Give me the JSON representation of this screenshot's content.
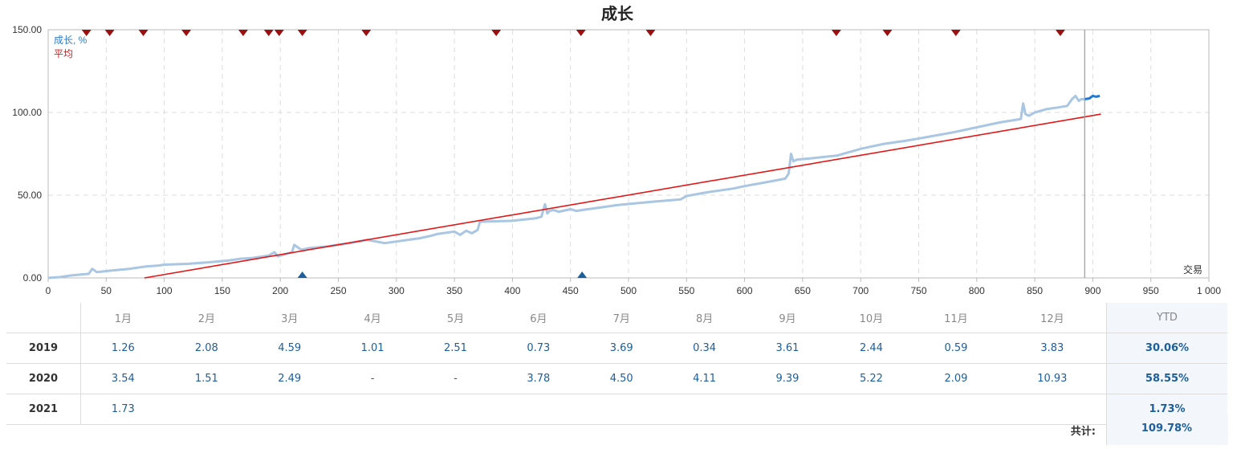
{
  "chart_data": {
    "type": "line",
    "title": "成长",
    "xlabel": "交易",
    "ylabel": "",
    "xlim": [
      0,
      1000
    ],
    "ylim": [
      0,
      150
    ],
    "grid": true,
    "legend_position": "top-left",
    "x_ticks": [
      "0",
      "50",
      "100",
      "150",
      "200",
      "250",
      "300",
      "350",
      "400",
      "450",
      "500",
      "550",
      "600",
      "650",
      "700",
      "750",
      "800",
      "850",
      "900",
      "950",
      "1 000"
    ],
    "y_ticks": [
      "0.00",
      "50.00",
      "100.00",
      "150.00"
    ],
    "colors": {
      "growth": "#a9c6e2",
      "growth_highlight": "#1f7ad6",
      "average": "#e01818",
      "marker_down": "#9b1010",
      "marker_up": "#1a5f9c",
      "cursor": "#999999"
    },
    "series": [
      {
        "name": "成长, %",
        "x": [
          0,
          10,
          20,
          35,
          38,
          42,
          55,
          70,
          80,
          85,
          95,
          100,
          120,
          140,
          155,
          165,
          175,
          190,
          195,
          198,
          205,
          210,
          212,
          218,
          225,
          240,
          260,
          275,
          290,
          300,
          320,
          330,
          335,
          350,
          355,
          360,
          365,
          370,
          372,
          400,
          420,
          425,
          428,
          430,
          432,
          435,
          440,
          450,
          455,
          460,
          470,
          490,
          520,
          545,
          550,
          570,
          590,
          600,
          620,
          635,
          638,
          640,
          642,
          645,
          660,
          680,
          700,
          720,
          740,
          760,
          780,
          800,
          820,
          838,
          840,
          842,
          845,
          850,
          860,
          870,
          878,
          882,
          885,
          888,
          890,
          893
        ],
        "values": [
          0,
          0.5,
          1.5,
          2.5,
          5.5,
          3.5,
          4.5,
          5.5,
          6.5,
          7,
          7.5,
          8,
          8.5,
          9.5,
          10.5,
          11.5,
          12,
          13.5,
          15.5,
          13,
          14.5,
          15.5,
          20,
          17,
          18,
          19,
          21,
          23,
          21,
          22,
          24,
          25.5,
          26.5,
          28,
          26,
          28.5,
          27,
          29,
          34,
          34.5,
          36,
          37,
          44.5,
          39,
          40.5,
          41,
          40,
          41.5,
          40.5,
          41,
          42,
          44,
          46,
          47.5,
          49.5,
          52,
          54,
          55.5,
          58,
          60,
          63,
          75,
          70.5,
          71.5,
          72.5,
          74,
          78,
          81,
          83,
          85.5,
          88,
          91,
          94,
          96,
          105.5,
          99,
          98,
          100,
          102,
          103,
          104,
          108,
          110,
          107,
          108,
          108
        ]
      },
      {
        "name": "成长, % (recent)",
        "x": [
          893,
          897,
          900,
          903,
          906
        ],
        "values": [
          108,
          108.5,
          110,
          109.5,
          110
        ]
      },
      {
        "name": "平均",
        "x": [
          83,
          907
        ],
        "values": [
          0,
          99
        ]
      }
    ],
    "markers_down_x": [
      33,
      53,
      82,
      119,
      168,
      190,
      199,
      219,
      274,
      386,
      459,
      519,
      679,
      723,
      782,
      872
    ],
    "markers_up_x": [
      219,
      460
    ],
    "cursor_x": 893
  },
  "table": {
    "headers": [
      "1月",
      "2月",
      "3月",
      "4月",
      "5月",
      "6月",
      "7月",
      "8月",
      "9月",
      "10月",
      "11月",
      "12月",
      "YTD"
    ],
    "rows": [
      {
        "year": "2019",
        "values": [
          "1.26",
          "2.08",
          "4.59",
          "1.01",
          "2.51",
          "0.73",
          "3.69",
          "0.34",
          "3.61",
          "2.44",
          "0.59",
          "3.83"
        ],
        "ytd": "30.06%"
      },
      {
        "year": "2020",
        "values": [
          "3.54",
          "1.51",
          "2.49",
          "-",
          "-",
          "3.78",
          "4.50",
          "4.11",
          "9.39",
          "5.22",
          "2.09",
          "10.93"
        ],
        "ytd": "58.55%"
      },
      {
        "year": "2021",
        "values": [
          "1.73",
          "",
          "",
          "",
          "",
          "",
          "",
          "",
          "",
          "",
          "",
          ""
        ],
        "ytd": "1.73%"
      }
    ],
    "total_label": "共计:",
    "total_value": "109.78%"
  }
}
